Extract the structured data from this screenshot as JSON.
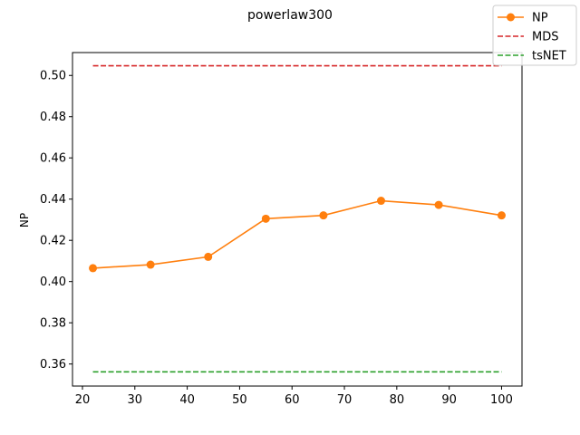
{
  "chart_data": {
    "type": "line",
    "title": "powerlaw300",
    "xlabel": "",
    "ylabel": "NP",
    "xlim": [
      18.1,
      103.9
    ],
    "ylim": [
      0.3493,
      0.5111
    ],
    "x_ticks": [
      20,
      30,
      40,
      50,
      60,
      70,
      80,
      90,
      100
    ],
    "y_ticks": [
      0.36,
      0.38,
      0.4,
      0.42,
      0.44,
      0.46,
      0.48,
      0.5
    ],
    "grid": false,
    "legend_position": "top-right",
    "series": [
      {
        "name": "NP",
        "style": "solid-marker",
        "color": "#ff7f0e",
        "x": [
          22,
          33,
          44,
          55,
          66,
          77,
          88,
          100
        ],
        "y": [
          0.4065,
          0.4082,
          0.412,
          0.4305,
          0.4321,
          0.4392,
          0.4372,
          0.4321
        ]
      },
      {
        "name": "MDS",
        "style": "dashed",
        "color": "#d62728",
        "x": [
          22,
          100
        ],
        "y": [
          0.5047,
          0.5047
        ]
      },
      {
        "name": "tsNET",
        "style": "dashed",
        "color": "#2ca02c",
        "x": [
          22,
          100
        ],
        "y": [
          0.3562,
          0.3562
        ]
      }
    ]
  }
}
